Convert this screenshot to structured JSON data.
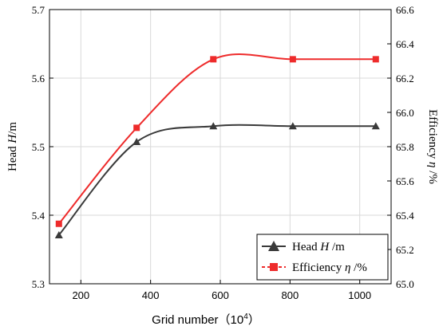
{
  "chart_data": {
    "type": "line",
    "xlabel": {
      "text": "Grid number（10",
      "sup": "4",
      "close": "）"
    },
    "ylabel_left": {
      "pre": "Head ",
      "var": "H",
      "post": "/m"
    },
    "ylabel_right": {
      "pre": "Efficiency ",
      "var": "η",
      "post": " /%"
    },
    "xlim": [
      110,
      1090
    ],
    "ylim_left": [
      5.3,
      5.7
    ],
    "ylim_right": [
      65.0,
      66.6
    ],
    "x_ticks": [
      200,
      400,
      600,
      800,
      1000
    ],
    "x_tick_labels": [
      "200",
      "400",
      "600",
      "800",
      "1000"
    ],
    "y_left_ticks": [
      5.3,
      5.4,
      5.5,
      5.6,
      5.7
    ],
    "y_left_tick_labels": [
      "5.3",
      "5.4",
      "5.5",
      "5.6",
      "5.7"
    ],
    "y_right_ticks": [
      65.0,
      65.2,
      65.4,
      65.6,
      65.8,
      66.0,
      66.2,
      66.4,
      66.6
    ],
    "y_right_tick_labels": [
      "65.0",
      "65.2",
      "65.4",
      "65.6",
      "65.8",
      "66.0",
      "66.2",
      "66.4",
      "66.6"
    ],
    "grid": true,
    "legend_position": "bottom-right",
    "series": [
      {
        "name": "Head H /m",
        "legend": {
          "pre": "Head ",
          "var": "H",
          "post": " /m"
        },
        "axis": "left",
        "marker": "triangle",
        "color": "#3a3a3a",
        "x": [
          137,
          360,
          580,
          808,
          1046
        ],
        "y": [
          5.371,
          5.507,
          5.53,
          5.53,
          5.53
        ]
      },
      {
        "name": "Efficiency η /%",
        "legend": {
          "pre": "Efficiency ",
          "var": "η",
          "post": " /%"
        },
        "axis": "right",
        "marker": "square",
        "color": "#ee2b2b",
        "x": [
          137,
          360,
          580,
          808,
          1046
        ],
        "y": [
          65.35,
          65.91,
          66.31,
          66.31,
          66.31
        ]
      }
    ]
  }
}
